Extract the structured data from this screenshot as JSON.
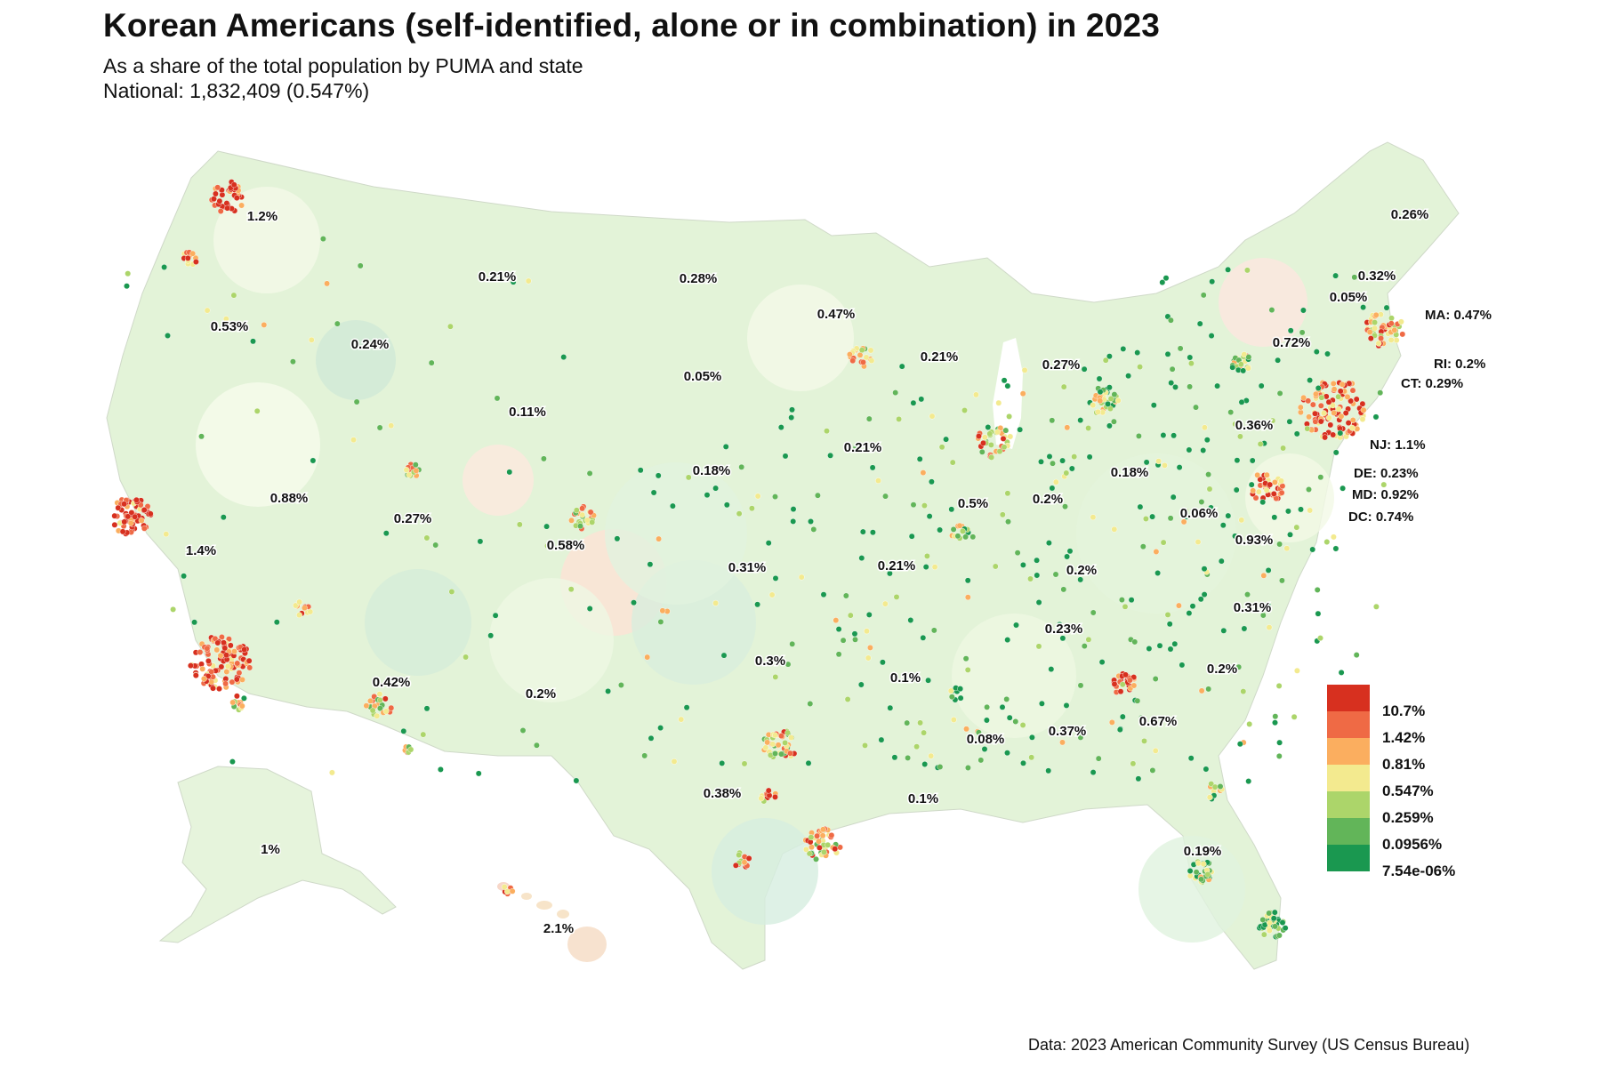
{
  "header": {
    "title": "Korean Americans (self-identified, alone or in combination) in 2023",
    "subtitle_line1": "As a share of the total population by PUMA and state",
    "subtitle_line2": "National: 1,832,409 (0.547%)"
  },
  "map": {
    "region": "United States",
    "state_labels": [
      "1.2%",
      "0.53%",
      "1.4%",
      "0.88%",
      "0.24%",
      "0.21%",
      "0.11%",
      "0.27%",
      "0.58%",
      "0.42%",
      "0.2%",
      "0.28%",
      "0.05%",
      "0.18%",
      "0.31%",
      "0.38%",
      "0.47%",
      "0.21%",
      "0.21%",
      "0.3%",
      "0.1%",
      "0.1%",
      "0.21%",
      "0.5%",
      "0.27%",
      "0.2%",
      "0.18%",
      "0.2%",
      "0.23%",
      "0.08%",
      "0.37%",
      "0.67%",
      "0.19%",
      "0.31%",
      "0.2%",
      "0.06%",
      "0.93%",
      "0.36%",
      "0.72%",
      "0.26%",
      "0.32%",
      "0.05%",
      "1%",
      "2.1%"
    ],
    "east_labels": [
      "MA: 0.47%",
      "RI: 0.2%",
      "CT: 0.29%",
      "NJ: 1.1%",
      "DE: 0.23%",
      "MD: 0.92%",
      "DC: 0.74%"
    ]
  },
  "legend": {
    "items": [
      {
        "label": "10.7%",
        "color": "#d7301f"
      },
      {
        "label": "1.42%",
        "color": "#ef6a45"
      },
      {
        "label": "0.81%",
        "color": "#fbae5f"
      },
      {
        "label": "0.547%",
        "color": "#f3ea8f"
      },
      {
        "label": "0.259%",
        "color": "#acd56a"
      },
      {
        "label": "0.0956%",
        "color": "#62b559"
      },
      {
        "label": "7.54e-06%",
        "color": "#1a9850"
      }
    ]
  },
  "source": "Data: 2023 American Community Survey (US Census Bureau)"
}
